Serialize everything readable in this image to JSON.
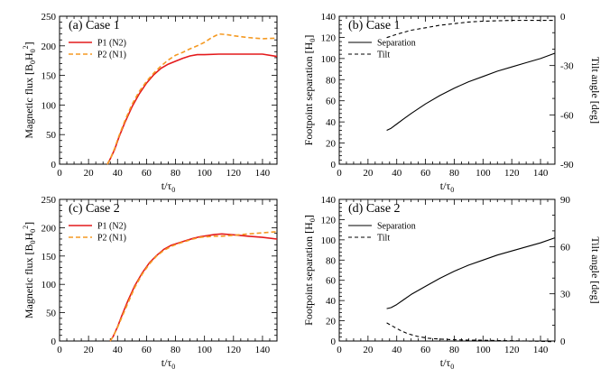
{
  "chart_data": [
    {
      "id": "a",
      "type": "line",
      "title": "(a) Case 1",
      "xlabel": "t/τ",
      "xlabel_sub": "0",
      "ylabel": "Magnetic flux [B",
      "ylabel_parts": [
        "Magnetic flux [B",
        "0",
        "H",
        "0",
        "2",
        "]"
      ],
      "xlim": [
        0,
        150
      ],
      "ylim": [
        0,
        250
      ],
      "xticks": [
        0,
        20,
        40,
        60,
        80,
        100,
        120,
        140
      ],
      "yticks": [
        0,
        50,
        100,
        150,
        200,
        250
      ],
      "legend": "top-left",
      "series": [
        {
          "name": "P1 (N2)",
          "color": "#e41a1c",
          "style": "solid",
          "axis": "left",
          "x": [
            33,
            35,
            38,
            41,
            45,
            50,
            55,
            60,
            65,
            70,
            75,
            80,
            85,
            90,
            95,
            100,
            110,
            120,
            130,
            140,
            150
          ],
          "values": [
            0,
            9,
            25,
            46,
            70,
            97,
            119,
            137,
            151,
            162,
            169,
            174,
            179,
            183,
            185,
            185,
            186,
            186,
            186,
            186,
            182
          ]
        },
        {
          "name": "P2 (N1)",
          "color": "#f59a23",
          "style": "dashed",
          "axis": "left",
          "x": [
            33,
            35,
            38,
            41,
            45,
            50,
            55,
            60,
            65,
            70,
            75,
            80,
            85,
            90,
            95,
            100,
            105,
            110,
            115,
            120,
            130,
            140,
            150
          ],
          "values": [
            0,
            9,
            27,
            48,
            73,
            101,
            123,
            140,
            154,
            166,
            176,
            184,
            189,
            195,
            200,
            206,
            214,
            220,
            219,
            217,
            214,
            212,
            213
          ]
        }
      ]
    },
    {
      "id": "b",
      "type": "line",
      "title": "(b) Case 1",
      "xlabel": "t/τ",
      "xlabel_sub": "0",
      "ylabel_parts": [
        "Footpoint separation [H",
        "0",
        "]"
      ],
      "y2label": "Tilt angle [deg]",
      "xlim": [
        0,
        150
      ],
      "ylim": [
        0,
        140
      ],
      "y2lim": [
        -90,
        0
      ],
      "xticks": [
        0,
        20,
        40,
        60,
        80,
        100,
        120,
        140
      ],
      "yticks": [
        0,
        20,
        40,
        60,
        80,
        100,
        120,
        140
      ],
      "y2ticks": [
        -90,
        -60,
        -30,
        0
      ],
      "legend": "top-left",
      "series": [
        {
          "name": "Separation",
          "color": "#000000",
          "style": "solid",
          "axis": "left",
          "x": [
            33,
            36,
            40,
            45,
            50,
            60,
            70,
            80,
            90,
            100,
            110,
            120,
            130,
            140,
            150
          ],
          "values": [
            32,
            34,
            38,
            43,
            48,
            57,
            65,
            72,
            78,
            83,
            88,
            92,
            96,
            100,
            105
          ]
        },
        {
          "name": "Tilt",
          "color": "#000000",
          "style": "dashed",
          "axis": "right",
          "x": [
            33,
            40,
            50,
            60,
            70,
            80,
            90,
            100,
            120,
            140,
            150
          ],
          "values": [
            -13,
            -11,
            -8.5,
            -7,
            -5.5,
            -4.5,
            -3.5,
            -3,
            -2.5,
            -2.5,
            -2.5
          ]
        }
      ]
    },
    {
      "id": "c",
      "type": "line",
      "title": "(c) Case 2",
      "xlabel": "t/τ",
      "xlabel_sub": "0",
      "ylabel_parts": [
        "Magnetic flux [B",
        "0",
        "H",
        "0",
        "2",
        "]"
      ],
      "xlim": [
        0,
        150
      ],
      "ylim": [
        0,
        250
      ],
      "xticks": [
        0,
        20,
        40,
        60,
        80,
        100,
        120,
        140
      ],
      "yticks": [
        0,
        50,
        100,
        150,
        200,
        250
      ],
      "legend": "top-left",
      "series": [
        {
          "name": "P1 (N2)",
          "color": "#e41a1c",
          "style": "solid",
          "axis": "left",
          "x": [
            35,
            37,
            40,
            43,
            47,
            52,
            57,
            62,
            67,
            72,
            77,
            82,
            87,
            92,
            97,
            102,
            107,
            112,
            117,
            122,
            130,
            140,
            150
          ],
          "values": [
            0,
            8,
            25,
            45,
            70,
            98,
            120,
            138,
            151,
            162,
            169,
            173,
            177,
            181,
            184,
            186,
            188,
            189,
            188,
            187,
            185,
            183,
            180
          ]
        },
        {
          "name": "P2 (N1)",
          "color": "#f59a23",
          "style": "dashed",
          "axis": "left",
          "x": [
            35,
            37,
            40,
            43,
            47,
            52,
            57,
            62,
            67,
            72,
            77,
            82,
            87,
            92,
            97,
            102,
            107,
            112,
            117,
            122,
            130,
            140,
            150
          ],
          "values": [
            0,
            8,
            24,
            42,
            66,
            95,
            118,
            136,
            150,
            160,
            167,
            172,
            176,
            180,
            183,
            184,
            185,
            185,
            186,
            187,
            189,
            191,
            193
          ]
        }
      ]
    },
    {
      "id": "d",
      "type": "line",
      "title": "(d) Case 2",
      "xlabel": "t/τ",
      "xlabel_sub": "0",
      "ylabel_parts": [
        "Footpoint separation [H",
        "0",
        "]"
      ],
      "y2label": "Tilt angle [deg]",
      "xlim": [
        0,
        150
      ],
      "ylim": [
        0,
        140
      ],
      "y2lim": [
        0,
        90
      ],
      "xticks": [
        0,
        20,
        40,
        60,
        80,
        100,
        120,
        140
      ],
      "yticks": [
        0,
        20,
        40,
        60,
        80,
        100,
        120,
        140
      ],
      "y2ticks": [
        0,
        30,
        60,
        90
      ],
      "legend": "top-left",
      "series": [
        {
          "name": "Separation",
          "color": "#000000",
          "style": "solid",
          "axis": "left",
          "x": [
            33,
            36,
            40,
            45,
            50,
            60,
            70,
            80,
            90,
            100,
            110,
            120,
            130,
            140,
            150
          ],
          "values": [
            32,
            33,
            36,
            41,
            46,
            54,
            62,
            69,
            75,
            80,
            85,
            89,
            93,
            97,
            102
          ]
        },
        {
          "name": "Tilt",
          "color": "#000000",
          "style": "dashed",
          "axis": "right",
          "x": [
            33,
            38,
            43,
            48,
            55,
            62,
            70,
            80,
            90,
            100,
            110,
            120,
            130,
            140,
            150
          ],
          "values": [
            11.5,
            9,
            6.5,
            4.5,
            2.8,
            1.8,
            1.2,
            0.8,
            0.6,
            0.5,
            0.3,
            0.2,
            0,
            -0.2,
            -0.5
          ]
        }
      ]
    }
  ]
}
